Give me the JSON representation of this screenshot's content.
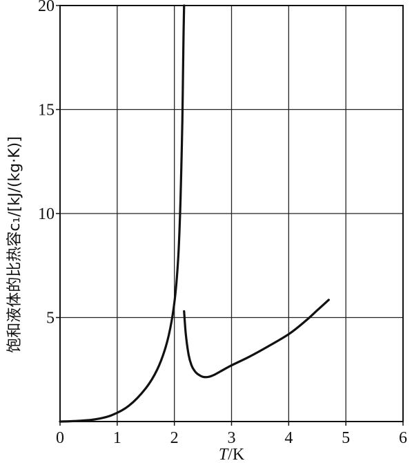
{
  "chart_data": {
    "type": "line",
    "xlabel": "T/K",
    "ylabel": "饱和液体的比热容c₁/[kJ/(kg·K)]",
    "xlim": [
      0,
      6
    ],
    "ylim": [
      0,
      20
    ],
    "x_ticks": [
      "0",
      "1",
      "2",
      "3",
      "4",
      "5",
      "6"
    ],
    "y_ticks": [
      "5",
      "10",
      "15",
      "20"
    ],
    "grid": true,
    "series": [
      {
        "x": [
          0.0,
          0.3,
          0.6,
          0.9,
          1.2,
          1.5,
          1.7,
          1.85,
          1.95,
          2.02,
          2.07,
          2.1,
          2.12,
          2.14,
          2.15,
          2.16,
          2.17
        ],
        "y": [
          0.0,
          0.03,
          0.1,
          0.3,
          0.75,
          1.6,
          2.5,
          3.6,
          4.8,
          6.2,
          8.0,
          10.0,
          12.0,
          14.5,
          16.5,
          18.5,
          20.0
        ]
      },
      {
        "x": [
          2.17,
          2.2,
          2.25,
          2.3,
          2.35,
          2.4,
          2.5,
          2.6,
          2.7,
          2.8,
          3.0,
          3.3,
          3.6,
          4.0,
          4.3,
          4.5,
          4.7
        ],
        "y": [
          5.3,
          4.2,
          3.2,
          2.7,
          2.45,
          2.3,
          2.15,
          2.15,
          2.25,
          2.4,
          2.7,
          3.1,
          3.55,
          4.2,
          4.85,
          5.35,
          5.85
        ]
      }
    ]
  }
}
